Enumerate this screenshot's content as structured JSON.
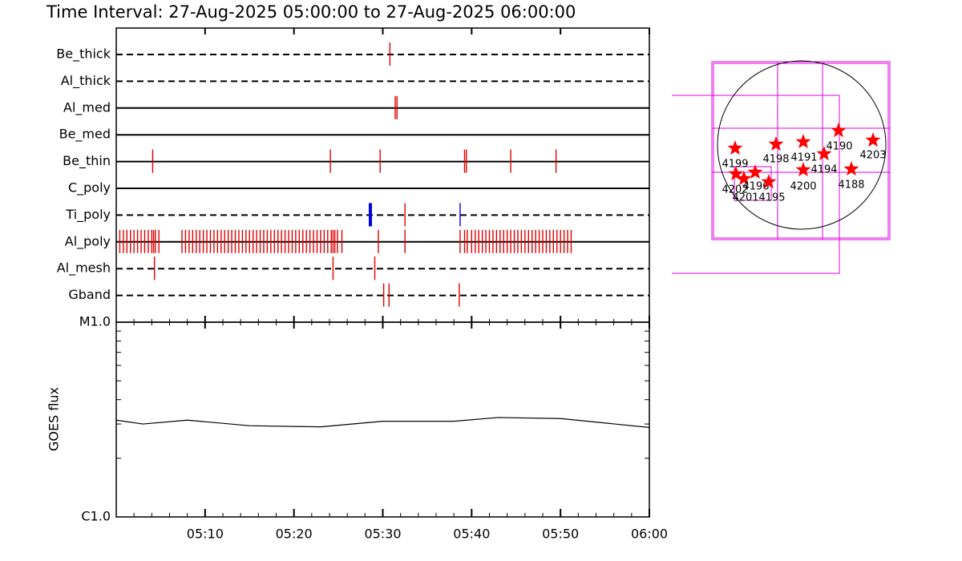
{
  "chart_data": [
    {
      "type": "events",
      "title": "Time Interval: 27-Aug-2025 05:00:00 to 27-Aug-2025 06:00:00",
      "event_color": "#e00000",
      "xlim": [
        0,
        60
      ],
      "rows": [
        {
          "name": "Be_thick",
          "style": "dashed",
          "times": [
            30.8
          ]
        },
        {
          "name": "Al_thick",
          "style": "dashed",
          "times": []
        },
        {
          "name": "Al_med",
          "style": "solid",
          "times": [
            31.4,
            31.6
          ]
        },
        {
          "name": "Be_med",
          "style": "solid",
          "times": []
        },
        {
          "name": "Be_thin",
          "style": "solid",
          "times": [
            4.1,
            24.1,
            29.7,
            39.2,
            39.4,
            44.4,
            49.5
          ]
        },
        {
          "name": "C_poly",
          "style": "solid",
          "times": []
        },
        {
          "name": "Ti_poly",
          "style": "dashed",
          "times": [
            28.6,
            32.5,
            38.7
          ],
          "colors": [
            "#0000e0",
            "#e00000",
            "#0000e0"
          ]
        },
        {
          "name": "Al_poly",
          "style": "solid",
          "times": [
            0.4,
            0.8,
            1.2,
            1.6,
            2.0,
            2.4,
            2.8,
            3.2,
            3.6,
            4.0,
            4.2,
            4.4,
            4.8,
            7.4,
            7.8,
            8.2,
            8.6,
            9.0,
            9.4,
            9.8,
            10.2,
            10.6,
            11.0,
            11.4,
            11.8,
            12.2,
            12.6,
            13.0,
            13.4,
            13.8,
            14.2,
            14.6,
            15.0,
            15.4,
            15.8,
            16.2,
            16.6,
            17.0,
            17.4,
            17.8,
            18.2,
            18.6,
            19.0,
            19.4,
            19.8,
            20.2,
            20.6,
            21.0,
            21.4,
            21.8,
            22.2,
            22.6,
            23.0,
            23.4,
            23.8,
            24.2,
            24.4,
            24.6,
            24.9,
            25.4,
            29.5,
            32.5,
            38.7,
            39.2,
            39.5,
            40.0,
            40.4,
            40.8,
            41.2,
            41.6,
            42.0,
            42.4,
            42.8,
            43.2,
            43.6,
            44.0,
            44.4,
            44.8,
            45.2,
            45.6,
            46.0,
            46.4,
            46.8,
            47.2,
            47.6,
            48.0,
            48.4,
            48.8,
            49.2,
            49.6,
            50.0,
            50.4,
            50.8,
            51.2
          ]
        },
        {
          "name": "Al_mesh",
          "style": "dashed",
          "times": [
            4.3,
            24.4,
            29.1
          ]
        },
        {
          "name": "Gband",
          "style": "dashed",
          "times": [
            30.1,
            30.7,
            38.6
          ]
        }
      ]
    },
    {
      "type": "line",
      "ylabel": "GOES flux",
      "x": [
        0,
        3,
        8,
        15,
        23,
        30,
        38,
        43,
        50,
        60
      ],
      "values": [
        3.14e-06,
        3e-06,
        3.14e-06,
        2.94e-06,
        2.9e-06,
        3.1e-06,
        3.1e-06,
        3.24e-06,
        3.2e-06,
        2.88e-06
      ],
      "color": "#000000",
      "log_scale": true,
      "xlim": [
        0,
        60
      ],
      "xticks": [
        {
          "value": 10,
          "label": "05:10"
        },
        {
          "value": 20,
          "label": "05:20"
        },
        {
          "value": 30,
          "label": "05:30"
        },
        {
          "value": 40,
          "label": "05:40"
        },
        {
          "value": 50,
          "label": "05:50"
        },
        {
          "value": 60,
          "label": "06:00"
        }
      ],
      "ylim": [
        1e-06,
        1e-05
      ],
      "yticks": [
        {
          "value": 1e-06,
          "label": "C1.0"
        },
        {
          "value": 1e-05,
          "label": "M1.0"
        }
      ]
    }
  ],
  "map": {
    "marker_color": "#ff0000",
    "regions": [
      {
        "label": "4199"
      },
      {
        "label": "4198"
      },
      {
        "label": "4191"
      },
      {
        "label": "4190"
      },
      {
        "label": "4203"
      },
      {
        "label": "4194"
      },
      {
        "label": "4188"
      },
      {
        "label": "4200"
      },
      {
        "label": "4202"
      },
      {
        "label": "4201"
      },
      {
        "label": "4196"
      },
      {
        "label": "4195"
      }
    ]
  }
}
